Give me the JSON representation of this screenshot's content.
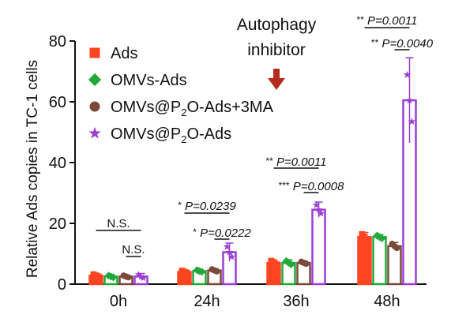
{
  "chart_data": {
    "type": "bar",
    "ylabel": "Relative Ads copies in TC-1 cells",
    "ylim": [
      0,
      80
    ],
    "yticks": [
      0,
      20,
      40,
      60,
      80
    ],
    "categories": [
      "0h",
      "24h",
      "36h",
      "48h"
    ],
    "series": [
      {
        "name": "Ads",
        "legend_main": "Ads",
        "legend_sub": "",
        "legend_tail": "",
        "color": "#ff4422",
        "marker": "square",
        "values": [
          2.8,
          4.0,
          7.0,
          15.5
        ],
        "errors": [
          0.6,
          0.6,
          1.0,
          1.5
        ],
        "filled": true
      },
      {
        "name": "OMVs-Ads",
        "legend_main": "OMVs-Ads",
        "legend_sub": "",
        "legend_tail": "",
        "color": "#21a93a",
        "marker": "diamond",
        "values": [
          2.5,
          4.3,
          7.0,
          15.5
        ],
        "errors": [
          0.5,
          0.5,
          1.0,
          0.8
        ],
        "filled": false
      },
      {
        "name": "OMVs@P2O-Ads+3MA",
        "legend_main": "OMVs@P",
        "legend_sub": "2",
        "legend_tail": "O-Ads+3MA",
        "color": "#7b4a3a",
        "marker": "circle",
        "values": [
          2.5,
          4.5,
          7.0,
          12.5
        ],
        "errors": [
          0.5,
          0.6,
          0.6,
          1.2
        ],
        "filled": false
      },
      {
        "name": "OMVs@P2O-Ads",
        "legend_main": "OMVs@P",
        "legend_sub": "2",
        "legend_tail": "O-Ads",
        "color": "#9b3fd4",
        "marker": "star",
        "values": [
          2.5,
          10.5,
          24.5,
          60.5
        ],
        "errors": [
          1.0,
          3.0,
          2.5,
          14.0
        ],
        "filled": false
      }
    ],
    "annotations": [
      {
        "group": "0h",
        "label": "N.S.",
        "stars": "",
        "from": 0,
        "to": 3
      },
      {
        "group": "0h",
        "label": "N.S.",
        "stars": "",
        "from": 2,
        "to": 3
      },
      {
        "group": "24h",
        "label": "P=0.0239",
        "stars": "*",
        "from": 0,
        "to": 3
      },
      {
        "group": "24h",
        "label": "P=0.0222",
        "stars": "*",
        "from": 2,
        "to": 3
      },
      {
        "group": "36h",
        "label": "P=0.0011",
        "stars": "**",
        "from": 0,
        "to": 3
      },
      {
        "group": "36h",
        "label": "P=0.0008",
        "stars": "***",
        "from": 2,
        "to": 3
      },
      {
        "group": "48h",
        "label": "P=0.0011",
        "stars": "**",
        "from": 0,
        "to": 3
      },
      {
        "group": "48h",
        "label": "P=0.0040",
        "stars": "**",
        "from": 2,
        "to": 3
      }
    ],
    "callout": {
      "lines": [
        "Autophagy",
        "inhibitor"
      ],
      "color": "#b32a1e"
    },
    "grid": false,
    "legend_position": "top-left"
  }
}
